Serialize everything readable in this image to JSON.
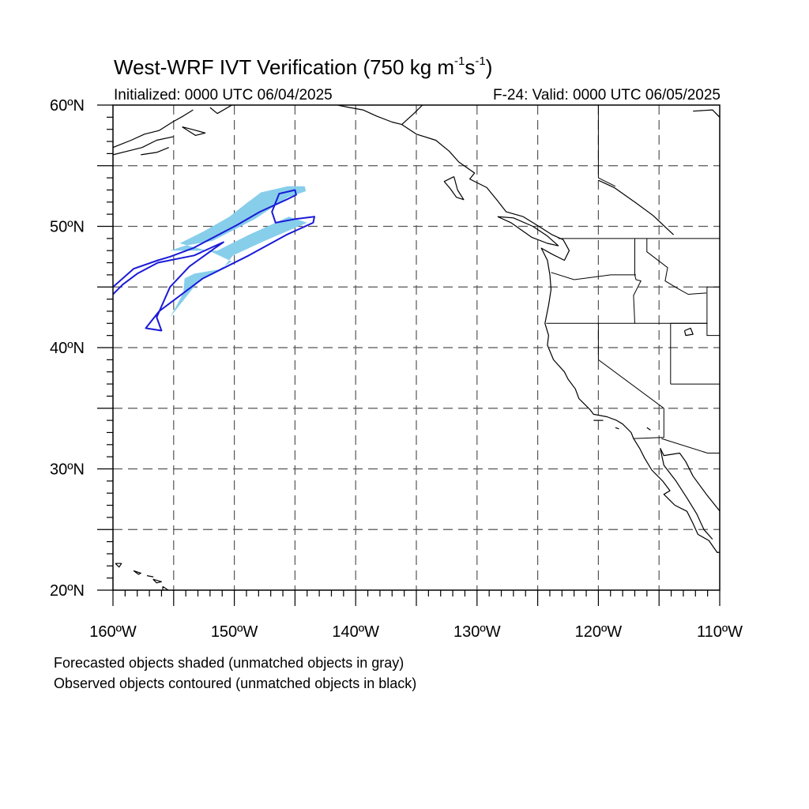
{
  "header": {
    "title_main": "West-WRF IVT Verification (750 kg m",
    "title_exp1": "-1",
    "title_mid": "s",
    "title_exp2": "-1",
    "title_end": ")",
    "initialized": "Initialized: 0000 UTC 06/04/2025",
    "valid": "F-24: Valid: 0000 UTC 06/05/2025"
  },
  "map": {
    "lon_range": [
      -160,
      -110
    ],
    "lat_range": [
      20,
      60
    ],
    "lat_labels": [
      "60ºN",
      "50ºN",
      "40ºN",
      "30ºN",
      "20ºN"
    ],
    "lon_labels": [
      "160ºW",
      "150ºW",
      "140ºW",
      "130ºW",
      "120ºW",
      "110ºW"
    ],
    "grid": "dashed every 5 degrees",
    "colors": {
      "forecast_shading": "#87ceeb",
      "observed_contour": "#1a1ad8",
      "coastline": "#000000",
      "grid": "#555555"
    }
  },
  "objects": {
    "forecast_objects": [
      {
        "name": "forecast-object-1",
        "matched": true,
        "points": [
          [
            -155.3,
            42.5
          ],
          [
            -154.2,
            44.5
          ],
          [
            -154.1,
            45.7
          ],
          [
            -153.3,
            46.1
          ],
          [
            -151.0,
            46.5
          ],
          [
            -150.1,
            47.6
          ],
          [
            -147.5,
            48.8
          ],
          [
            -144.0,
            50.3
          ],
          [
            -145.5,
            50.8
          ],
          [
            -148.8,
            49.3
          ],
          [
            -151.4,
            48.0
          ],
          [
            -155.3,
            48.0
          ],
          [
            -154.1,
            48.4
          ],
          [
            -151.8,
            48.8
          ],
          [
            -148.3,
            50.6
          ],
          [
            -145.6,
            52.4
          ],
          [
            -144.1,
            52.9
          ],
          [
            -144.2,
            53.3
          ],
          [
            -145.6,
            53.3
          ],
          [
            -147.8,
            52.8
          ],
          [
            -149.0,
            51.9
          ],
          [
            -150.4,
            50.8
          ],
          [
            -152.5,
            49.6
          ],
          [
            -154.5,
            48.6
          ],
          [
            -153.4,
            48.3
          ],
          [
            -151.9,
            47.9
          ],
          [
            -150.2,
            47.1
          ],
          [
            -153.0,
            45.4
          ],
          [
            -155.3,
            42.5
          ]
        ]
      }
    ],
    "observed_objects": [
      {
        "name": "observed-object-outer",
        "matched": true,
        "points": [
          [
            -160,
            45.0
          ],
          [
            -158.3,
            46.5
          ],
          [
            -156.3,
            47.2
          ],
          [
            -155.3,
            47.5
          ],
          [
            -153.4,
            48.2
          ],
          [
            -149.8,
            50.1
          ],
          [
            -147.9,
            51.2
          ],
          [
            -145.7,
            52.2
          ],
          [
            -144.9,
            52.6
          ],
          [
            -145.0,
            53.0
          ],
          [
            -146.3,
            52.7
          ],
          [
            -146.9,
            51.2
          ],
          [
            -146.6,
            50.3
          ],
          [
            -145.0,
            50.6
          ],
          [
            -143.4,
            50.8
          ],
          [
            -143.5,
            50.3
          ],
          [
            -145.7,
            49.3
          ],
          [
            -148.8,
            47.6
          ],
          [
            -152.6,
            45.7
          ],
          [
            -156.2,
            43.0
          ],
          [
            -157.3,
            41.6
          ],
          [
            -156.0,
            41.4
          ],
          [
            -156.4,
            42.5
          ],
          [
            -155.3,
            45.0
          ],
          [
            -153.7,
            46.7
          ],
          [
            -151.6,
            48.2
          ],
          [
            -150.9,
            48.7
          ],
          [
            -152.0,
            48.2
          ],
          [
            -153.3,
            47.6
          ],
          [
            -156.3,
            47.0
          ],
          [
            -158.0,
            46.1
          ],
          [
            -159.2,
            45.2
          ],
          [
            -160,
            44.4
          ]
        ]
      }
    ]
  },
  "footnotes": {
    "line1": "Forecasted objects shaded (unmatched objects in gray)",
    "line2": "Observed objects contoured (unmatched objects in black)"
  }
}
